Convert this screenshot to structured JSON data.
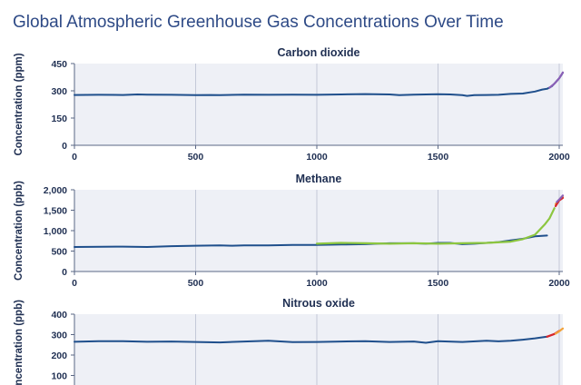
{
  "title": "Global Atmospheric Greenhouse Gas Concentrations Over Time",
  "colors": {
    "plot_bg": "#eef0f6",
    "grid": "#c4c9d8",
    "axis": "#5a6785",
    "text": "#1f2f52",
    "series_main": "#1f4f8c",
    "series_green": "#8cc63f",
    "series_orange": "#f2a23a",
    "series_red": "#d7262b",
    "series_purple": "#8a5fb6"
  },
  "chart_data": [
    {
      "type": "line",
      "title": "Carbon dioxide",
      "ylabel": "Concentration (ppm)",
      "xlim": [
        0,
        2015
      ],
      "ylim": [
        0,
        450
      ],
      "xticks": [
        "0",
        "500",
        "1000",
        "1500",
        "2000"
      ],
      "yticks": [
        "0",
        "150",
        "300",
        "450"
      ],
      "grid": true,
      "series": [
        {
          "color": "#1f4f8c",
          "x": [
            0,
            100,
            200,
            260,
            300,
            400,
            500,
            560,
            600,
            700,
            800,
            900,
            1000,
            1100,
            1200,
            1300,
            1340,
            1400,
            1450,
            1500,
            1550,
            1600,
            1620,
            1650,
            1700,
            1750,
            1800,
            1850,
            1900,
            1930,
            1950,
            1970,
            1990,
            2000,
            2010,
            2015
          ],
          "values": [
            277,
            278,
            277,
            280,
            279,
            278,
            276,
            277,
            276,
            279,
            278,
            279,
            278,
            280,
            282,
            280,
            276,
            279,
            280,
            281,
            280,
            276,
            272,
            276,
            277,
            278,
            283,
            285,
            296,
            307,
            311,
            325,
            354,
            369,
            389,
            400
          ]
        },
        {
          "color": "#8a5fb6",
          "x": [
            1960,
            1980,
            2000,
            2015
          ],
          "values": [
            317,
            339,
            369,
            401
          ]
        }
      ]
    },
    {
      "type": "line",
      "title": "Methane",
      "ylabel": "Concentration (ppb)",
      "xlim": [
        0,
        2015
      ],
      "ylim": [
        0,
        2000
      ],
      "xticks": [
        "0",
        "500",
        "1000",
        "1500",
        "2000"
      ],
      "yticks": [
        "0",
        "500",
        "1,000",
        "1,500",
        "2,000"
      ],
      "grid": true,
      "series": [
        {
          "color": "#1f4f8c",
          "x": [
            0,
            200,
            300,
            400,
            500,
            600,
            650,
            700,
            800,
            900,
            1000,
            1100,
            1200,
            1300,
            1400,
            1450,
            1500,
            1550,
            1600,
            1650,
            1700,
            1750,
            1800,
            1850,
            1900,
            1950
          ],
          "values": [
            600,
            610,
            600,
            620,
            630,
            640,
            630,
            640,
            640,
            650,
            650,
            660,
            670,
            690,
            690,
            680,
            700,
            700,
            670,
            680,
            700,
            720,
            760,
            800,
            860,
            880
          ]
        },
        {
          "color": "#8cc63f",
          "x": [
            1000,
            1100,
            1200,
            1300,
            1400,
            1500,
            1600,
            1700,
            1800,
            1850,
            1900,
            1940,
            1960,
            1980
          ],
          "values": [
            680,
            700,
            690,
            680,
            690,
            680,
            690,
            700,
            730,
            790,
            900,
            1150,
            1300,
            1550
          ]
        },
        {
          "color": "#f2a23a",
          "x": [
            1985,
            1995,
            2005,
            2015
          ],
          "values": [
            1650,
            1720,
            1770,
            1820
          ]
        },
        {
          "color": "#d7262b",
          "x": [
            1985,
            2000,
            2015
          ],
          "values": [
            1600,
            1740,
            1800
          ]
        },
        {
          "color": "#8a5fb6",
          "x": [
            1990,
            2005,
            2015
          ],
          "values": [
            1700,
            1790,
            1860
          ]
        }
      ]
    },
    {
      "type": "line",
      "title": "Nitrous oxide",
      "ylabel": "Concentration (ppb)",
      "xlim": [
        0,
        2015
      ],
      "ylim": [
        0,
        400
      ],
      "xticks": [],
      "yticks": [
        "100",
        "200",
        "300",
        "400"
      ],
      "grid": true,
      "series": [
        {
          "color": "#1f4f8c",
          "x": [
            0,
            100,
            200,
            300,
            400,
            500,
            600,
            700,
            800,
            900,
            1000,
            1100,
            1200,
            1300,
            1400,
            1450,
            1500,
            1600,
            1700,
            1750,
            1800,
            1850,
            1900,
            1950
          ],
          "values": [
            265,
            268,
            268,
            265,
            266,
            264,
            262,
            266,
            270,
            263,
            264,
            266,
            268,
            264,
            266,
            260,
            268,
            264,
            270,
            267,
            270,
            275,
            282,
            290
          ]
        },
        {
          "color": "#d7262b",
          "x": [
            1950,
            1980,
            2000
          ],
          "values": [
            290,
            303,
            318
          ]
        },
        {
          "color": "#f2a23a",
          "x": [
            1985,
            2000,
            2015
          ],
          "values": [
            305,
            316,
            330
          ]
        }
      ]
    }
  ]
}
